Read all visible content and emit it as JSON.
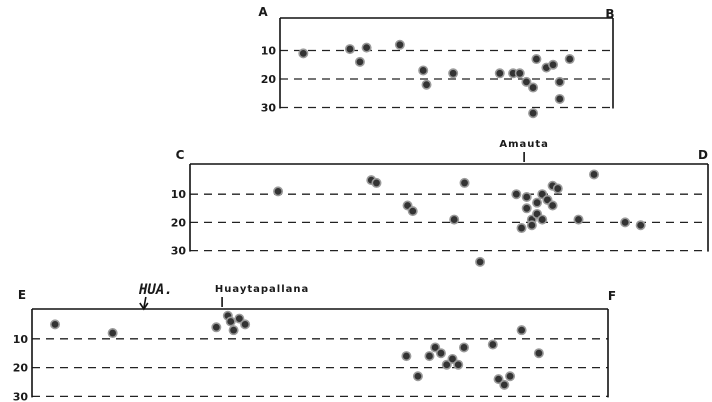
{
  "chart_data": [
    {
      "type": "scatter",
      "section": "A-B",
      "corner_left": "A",
      "corner_right": "B",
      "y_ticks": [
        "10",
        "20",
        "30"
      ],
      "ylim": [
        0,
        30
      ],
      "y_inverted": true,
      "xlim": [
        0,
        1
      ],
      "grid": true,
      "points": [
        {
          "x": 0.07,
          "y": 11
        },
        {
          "x": 0.21,
          "y": 9.5
        },
        {
          "x": 0.24,
          "y": 14
        },
        {
          "x": 0.26,
          "y": 9
        },
        {
          "x": 0.36,
          "y": 8
        },
        {
          "x": 0.43,
          "y": 17
        },
        {
          "x": 0.44,
          "y": 22
        },
        {
          "x": 0.52,
          "y": 18
        },
        {
          "x": 0.66,
          "y": 18
        },
        {
          "x": 0.7,
          "y": 18
        },
        {
          "x": 0.72,
          "y": 18
        },
        {
          "x": 0.74,
          "y": 21
        },
        {
          "x": 0.76,
          "y": 23
        },
        {
          "x": 0.77,
          "y": 13
        },
        {
          "x": 0.8,
          "y": 16
        },
        {
          "x": 0.82,
          "y": 15
        },
        {
          "x": 0.84,
          "y": 21
        },
        {
          "x": 0.84,
          "y": 27
        },
        {
          "x": 0.87,
          "y": 13
        },
        {
          "x": 0.76,
          "y": 32
        }
      ]
    },
    {
      "type": "scatter",
      "section": "C-D",
      "corner_left": "C",
      "corner_right": "D",
      "y_ticks": [
        "10",
        "20",
        "30"
      ],
      "ylim": [
        0,
        30
      ],
      "y_inverted": true,
      "xlim": [
        0,
        1
      ],
      "grid": true,
      "annotations": [
        {
          "label": "Amauta",
          "x": 0.645
        }
      ],
      "points": [
        {
          "x": 0.17,
          "y": 9
        },
        {
          "x": 0.35,
          "y": 5
        },
        {
          "x": 0.36,
          "y": 6
        },
        {
          "x": 0.42,
          "y": 14
        },
        {
          "x": 0.43,
          "y": 16
        },
        {
          "x": 0.51,
          "y": 19
        },
        {
          "x": 0.53,
          "y": 6
        },
        {
          "x": 0.56,
          "y": 34
        },
        {
          "x": 0.63,
          "y": 10
        },
        {
          "x": 0.64,
          "y": 22
        },
        {
          "x": 0.65,
          "y": 11
        },
        {
          "x": 0.65,
          "y": 15
        },
        {
          "x": 0.66,
          "y": 19
        },
        {
          "x": 0.66,
          "y": 21
        },
        {
          "x": 0.67,
          "y": 13
        },
        {
          "x": 0.67,
          "y": 17
        },
        {
          "x": 0.68,
          "y": 10
        },
        {
          "x": 0.68,
          "y": 19
        },
        {
          "x": 0.69,
          "y": 12
        },
        {
          "x": 0.7,
          "y": 7
        },
        {
          "x": 0.7,
          "y": 14
        },
        {
          "x": 0.71,
          "y": 8
        },
        {
          "x": 0.75,
          "y": 19
        },
        {
          "x": 0.78,
          "y": 3
        },
        {
          "x": 0.84,
          "y": 20
        },
        {
          "x": 0.87,
          "y": 21
        }
      ]
    },
    {
      "type": "scatter",
      "section": "E-F",
      "corner_left": "E",
      "corner_right": "F",
      "y_ticks": [
        "10",
        "20",
        "30"
      ],
      "ylim": [
        0,
        30
      ],
      "y_inverted": true,
      "xlim": [
        0,
        1
      ],
      "grid": true,
      "annotations": [
        {
          "label": "Huaytapallana",
          "x": 0.33
        },
        {
          "label": "HUA.",
          "x": 0.215,
          "handwritten": true
        }
      ],
      "points": [
        {
          "x": 0.04,
          "y": 5
        },
        {
          "x": 0.14,
          "y": 8
        },
        {
          "x": 0.32,
          "y": 6
        },
        {
          "x": 0.34,
          "y": 2
        },
        {
          "x": 0.345,
          "y": 4
        },
        {
          "x": 0.35,
          "y": 7
        },
        {
          "x": 0.36,
          "y": 3
        },
        {
          "x": 0.37,
          "y": 5
        },
        {
          "x": 0.65,
          "y": 16
        },
        {
          "x": 0.67,
          "y": 23
        },
        {
          "x": 0.69,
          "y": 16
        },
        {
          "x": 0.7,
          "y": 13
        },
        {
          "x": 0.71,
          "y": 15
        },
        {
          "x": 0.72,
          "y": 19
        },
        {
          "x": 0.73,
          "y": 17
        },
        {
          "x": 0.74,
          "y": 19
        },
        {
          "x": 0.75,
          "y": 13
        },
        {
          "x": 0.8,
          "y": 12
        },
        {
          "x": 0.81,
          "y": 24
        },
        {
          "x": 0.82,
          "y": 26
        },
        {
          "x": 0.83,
          "y": 23
        },
        {
          "x": 0.85,
          "y": 7
        },
        {
          "x": 0.88,
          "y": 15
        }
      ]
    }
  ]
}
